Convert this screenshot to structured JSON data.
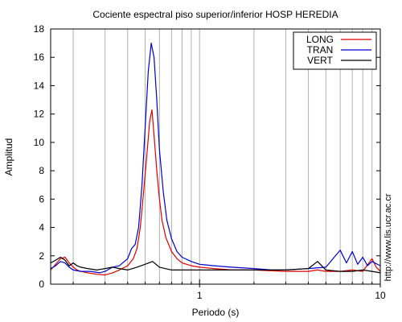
{
  "chart_data": {
    "type": "line",
    "title": "Cociente espectral piso superior/inferior  HOSP HEREDIA",
    "xlabel": "Periodo (s)",
    "ylabel": "Amplitud",
    "x_scale": "log",
    "xlim": [
      0.15,
      10
    ],
    "ylim": [
      0,
      18
    ],
    "x_tick_labels": [
      {
        "value": 1,
        "label": "1"
      },
      {
        "value": 10,
        "label": "10"
      }
    ],
    "y_ticks": [
      0,
      2,
      4,
      6,
      8,
      10,
      12,
      14,
      16,
      18
    ],
    "grid": "vertical minor lines (log decades)",
    "legend_position": "top-right",
    "watermark": "http://www.lis.ucr.ac.cr",
    "series": [
      {
        "name": "LONG",
        "color": "#e00000",
        "points": [
          [
            0.15,
            1.0
          ],
          [
            0.16,
            1.4
          ],
          [
            0.17,
            1.8
          ],
          [
            0.18,
            1.9
          ],
          [
            0.19,
            1.5
          ],
          [
            0.2,
            1.2
          ],
          [
            0.21,
            1.0
          ],
          [
            0.22,
            0.9
          ],
          [
            0.24,
            0.8
          ],
          [
            0.27,
            0.7
          ],
          [
            0.3,
            0.65
          ],
          [
            0.33,
            0.8
          ],
          [
            0.36,
            1.0
          ],
          [
            0.4,
            1.3
          ],
          [
            0.43,
            1.8
          ],
          [
            0.45,
            2.5
          ],
          [
            0.47,
            4.0
          ],
          [
            0.49,
            6.5
          ],
          [
            0.51,
            9.0
          ],
          [
            0.53,
            11.5
          ],
          [
            0.545,
            12.3
          ],
          [
            0.56,
            10.5
          ],
          [
            0.58,
            8.0
          ],
          [
            0.6,
            6.0
          ],
          [
            0.62,
            4.5
          ],
          [
            0.65,
            3.3
          ],
          [
            0.7,
            2.3
          ],
          [
            0.75,
            1.8
          ],
          [
            0.8,
            1.5
          ],
          [
            0.9,
            1.3
          ],
          [
            1.0,
            1.2
          ],
          [
            1.2,
            1.1
          ],
          [
            1.5,
            1.0
          ],
          [
            2.0,
            1.0
          ],
          [
            3.0,
            0.9
          ],
          [
            4.0,
            0.9
          ],
          [
            4.5,
            1.0
          ],
          [
            5.0,
            0.9
          ],
          [
            6.0,
            0.9
          ],
          [
            7.0,
            1.0
          ],
          [
            8.0,
            0.9
          ],
          [
            9.0,
            1.8
          ],
          [
            9.5,
            1.2
          ],
          [
            10.0,
            0.9
          ]
        ]
      },
      {
        "name": "TRAN",
        "color": "#0000d0",
        "points": [
          [
            0.15,
            1.1
          ],
          [
            0.16,
            1.3
          ],
          [
            0.17,
            1.6
          ],
          [
            0.18,
            1.5
          ],
          [
            0.19,
            1.2
          ],
          [
            0.2,
            1.0
          ],
          [
            0.22,
            0.9
          ],
          [
            0.25,
            0.9
          ],
          [
            0.28,
            0.8
          ],
          [
            0.3,
            0.9
          ],
          [
            0.33,
            1.2
          ],
          [
            0.36,
            1.3
          ],
          [
            0.4,
            1.8
          ],
          [
            0.42,
            2.5
          ],
          [
            0.44,
            2.8
          ],
          [
            0.46,
            4.0
          ],
          [
            0.48,
            7.0
          ],
          [
            0.5,
            11.0
          ],
          [
            0.52,
            15.0
          ],
          [
            0.54,
            17.0
          ],
          [
            0.56,
            16.0
          ],
          [
            0.58,
            13.0
          ],
          [
            0.6,
            9.5
          ],
          [
            0.63,
            6.5
          ],
          [
            0.66,
            4.5
          ],
          [
            0.7,
            3.2
          ],
          [
            0.75,
            2.3
          ],
          [
            0.8,
            1.9
          ],
          [
            0.9,
            1.6
          ],
          [
            1.0,
            1.4
          ],
          [
            1.2,
            1.3
          ],
          [
            1.5,
            1.2
          ],
          [
            2.0,
            1.1
          ],
          [
            2.5,
            1.0
          ],
          [
            3.0,
            1.0
          ],
          [
            4.0,
            1.1
          ],
          [
            5.0,
            1.2
          ],
          [
            6.0,
            2.4
          ],
          [
            6.5,
            1.5
          ],
          [
            7.0,
            2.3
          ],
          [
            7.5,
            1.4
          ],
          [
            8.0,
            1.9
          ],
          [
            8.5,
            1.3
          ],
          [
            9.0,
            1.6
          ],
          [
            10.0,
            1.3
          ]
        ]
      },
      {
        "name": "VERT",
        "color": "#000000",
        "points": [
          [
            0.15,
            1.5
          ],
          [
            0.16,
            1.7
          ],
          [
            0.17,
            1.9
          ],
          [
            0.18,
            1.7
          ],
          [
            0.19,
            1.3
          ],
          [
            0.2,
            1.5
          ],
          [
            0.21,
            1.3
          ],
          [
            0.22,
            1.2
          ],
          [
            0.24,
            1.1
          ],
          [
            0.27,
            1.0
          ],
          [
            0.3,
            1.1
          ],
          [
            0.33,
            1.2
          ],
          [
            0.36,
            1.1
          ],
          [
            0.4,
            1.0
          ],
          [
            0.45,
            1.2
          ],
          [
            0.5,
            1.4
          ],
          [
            0.55,
            1.6
          ],
          [
            0.6,
            1.2
          ],
          [
            0.7,
            1.0
          ],
          [
            0.8,
            1.0
          ],
          [
            1.0,
            1.0
          ],
          [
            1.5,
            1.0
          ],
          [
            2.0,
            1.0
          ],
          [
            3.0,
            1.0
          ],
          [
            4.0,
            1.1
          ],
          [
            4.5,
            1.6
          ],
          [
            5.0,
            1.0
          ],
          [
            6.0,
            0.9
          ],
          [
            7.0,
            0.9
          ],
          [
            8.0,
            1.0
          ],
          [
            9.0,
            0.9
          ],
          [
            10.0,
            0.8
          ]
        ]
      }
    ]
  }
}
